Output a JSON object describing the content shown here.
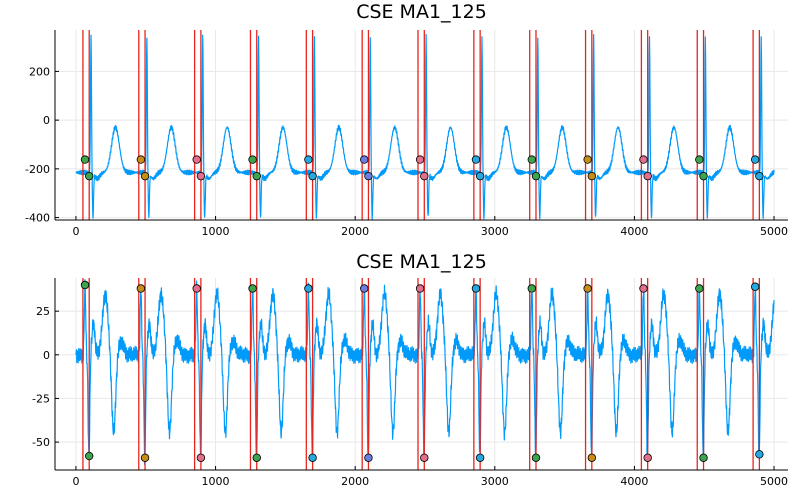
{
  "chart_data": [
    {
      "type": "line",
      "title": "CSE MA1_125",
      "xlabel": "",
      "ylabel": "",
      "xlim": [
        -150,
        5100
      ],
      "ylim": [
        -410,
        370
      ],
      "xticks": [
        0,
        1000,
        2000,
        3000,
        4000,
        5000
      ],
      "yticks": [
        -400,
        -200,
        0,
        200
      ],
      "grid": true,
      "legend": "none",
      "signal_color": "#009AFA",
      "vline_color": "#E8251D",
      "signal": {
        "n": 5000,
        "baseline": -215,
        "beats": [
          {
            "x": 108,
            "q": -395,
            "r": 350
          },
          {
            "x": 508,
            "q": -390,
            "r": 345
          },
          {
            "x": 908,
            "q": -395,
            "r": 345
          },
          {
            "x": 1308,
            "q": -395,
            "r": 345
          },
          {
            "x": 1708,
            "q": -395,
            "r": 345
          },
          {
            "x": 2108,
            "q": -395,
            "r": 345
          },
          {
            "x": 2508,
            "q": -395,
            "r": 345
          },
          {
            "x": 2908,
            "q": -395,
            "r": 345
          },
          {
            "x": 3308,
            "q": -395,
            "r": 345
          },
          {
            "x": 3708,
            "q": -395,
            "r": 345
          },
          {
            "x": 4108,
            "q": -395,
            "r": 345
          },
          {
            "x": 4508,
            "q": -395,
            "r": 345
          },
          {
            "x": 4908,
            "q": -395,
            "r": 345
          }
        ]
      },
      "vlines": [
        50,
        95,
        450,
        495,
        850,
        895,
        1250,
        1295,
        1650,
        1695,
        2050,
        2095,
        2450,
        2495,
        2850,
        2895,
        3250,
        3295,
        3650,
        3695,
        4050,
        4095,
        4450,
        4495,
        4850,
        4895
      ],
      "markers": [
        {
          "x": 65,
          "y": -162,
          "color": "#3EA44E"
        },
        {
          "x": 95,
          "y": -230,
          "color": "#3EA44E"
        },
        {
          "x": 465,
          "y": -162,
          "color": "#C68E19"
        },
        {
          "x": 495,
          "y": -230,
          "color": "#C68E19"
        },
        {
          "x": 865,
          "y": -162,
          "color": "#E26F8B"
        },
        {
          "x": 895,
          "y": -230,
          "color": "#E26F8B"
        },
        {
          "x": 1265,
          "y": -162,
          "color": "#3EA44E"
        },
        {
          "x": 1295,
          "y": -230,
          "color": "#3EA44E"
        },
        {
          "x": 1665,
          "y": -162,
          "color": "#27A9E0"
        },
        {
          "x": 1695,
          "y": -230,
          "color": "#27A9E0"
        },
        {
          "x": 2065,
          "y": -162,
          "color": "#6B7FE3"
        },
        {
          "x": 2095,
          "y": -230,
          "color": "#6B7FE3"
        },
        {
          "x": 2465,
          "y": -162,
          "color": "#E26F8B"
        },
        {
          "x": 2495,
          "y": -230,
          "color": "#E26F8B"
        },
        {
          "x": 2865,
          "y": -162,
          "color": "#27A9E0"
        },
        {
          "x": 2895,
          "y": -230,
          "color": "#27A9E0"
        },
        {
          "x": 3265,
          "y": -162,
          "color": "#3EA44E"
        },
        {
          "x": 3295,
          "y": -230,
          "color": "#3EA44E"
        },
        {
          "x": 3665,
          "y": -162,
          "color": "#C68E19"
        },
        {
          "x": 3695,
          "y": -230,
          "color": "#C68E19"
        },
        {
          "x": 4065,
          "y": -162,
          "color": "#E26F8B"
        },
        {
          "x": 4095,
          "y": -230,
          "color": "#E26F8B"
        },
        {
          "x": 4465,
          "y": -162,
          "color": "#3EA44E"
        },
        {
          "x": 4495,
          "y": -230,
          "color": "#3EA44E"
        },
        {
          "x": 4865,
          "y": -162,
          "color": "#27A9E0"
        },
        {
          "x": 4895,
          "y": -230,
          "color": "#27A9E0"
        }
      ]
    },
    {
      "type": "line",
      "title": "CSE MA1_125",
      "xlabel": "",
      "ylabel": "",
      "xlim": [
        -150,
        5100
      ],
      "ylim": [
        -66,
        44
      ],
      "xticks": [
        0,
        1000,
        2000,
        3000,
        4000,
        5000
      ],
      "yticks": [
        -50,
        -25,
        0,
        25
      ],
      "grid": true,
      "legend": "none",
      "signal_color": "#009AFA",
      "vline_color": "#E8251D",
      "signal": {
        "n": 5000,
        "baseline": 0,
        "beats": [
          {
            "x": 65,
            "q": -58,
            "r": 40
          },
          {
            "x": 465,
            "q": -59,
            "r": 38
          },
          {
            "x": 865,
            "q": -59,
            "r": 38
          },
          {
            "x": 1265,
            "q": -59,
            "r": 38
          },
          {
            "x": 1665,
            "q": -59,
            "r": 38
          },
          {
            "x": 2065,
            "q": -59,
            "r": 38
          },
          {
            "x": 2465,
            "q": -59,
            "r": 38
          },
          {
            "x": 2865,
            "q": -59,
            "r": 38
          },
          {
            "x": 3265,
            "q": -59,
            "r": 38
          },
          {
            "x": 3665,
            "q": -59,
            "r": 38
          },
          {
            "x": 4065,
            "q": -59,
            "r": 38
          },
          {
            "x": 4465,
            "q": -59,
            "r": 38
          },
          {
            "x": 4865,
            "q": -58,
            "r": 39
          }
        ]
      },
      "vlines": [
        50,
        95,
        450,
        495,
        850,
        895,
        1250,
        1295,
        1650,
        1695,
        2050,
        2095,
        2450,
        2495,
        2850,
        2895,
        3250,
        3295,
        3650,
        3695,
        4050,
        4095,
        4450,
        4495,
        4850,
        4895
      ],
      "markers": [
        {
          "x": 65,
          "y": 40,
          "color": "#3EA44E"
        },
        {
          "x": 95,
          "y": -58,
          "color": "#3EA44E"
        },
        {
          "x": 465,
          "y": 38,
          "color": "#C68E19"
        },
        {
          "x": 495,
          "y": -59,
          "color": "#C68E19"
        },
        {
          "x": 865,
          "y": 38,
          "color": "#E26F8B"
        },
        {
          "x": 895,
          "y": -59,
          "color": "#E26F8B"
        },
        {
          "x": 1265,
          "y": 38,
          "color": "#3EA44E"
        },
        {
          "x": 1295,
          "y": -59,
          "color": "#3EA44E"
        },
        {
          "x": 1665,
          "y": 38,
          "color": "#27A9E0"
        },
        {
          "x": 1695,
          "y": -59,
          "color": "#27A9E0"
        },
        {
          "x": 2065,
          "y": 38,
          "color": "#6B7FE3"
        },
        {
          "x": 2095,
          "y": -59,
          "color": "#6B7FE3"
        },
        {
          "x": 2465,
          "y": 38,
          "color": "#E26F8B"
        },
        {
          "x": 2495,
          "y": -59,
          "color": "#E26F8B"
        },
        {
          "x": 2865,
          "y": 38,
          "color": "#27A9E0"
        },
        {
          "x": 2895,
          "y": -59,
          "color": "#27A9E0"
        },
        {
          "x": 3265,
          "y": 38,
          "color": "#3EA44E"
        },
        {
          "x": 3295,
          "y": -59,
          "color": "#3EA44E"
        },
        {
          "x": 3665,
          "y": 38,
          "color": "#C68E19"
        },
        {
          "x": 3695,
          "y": -59,
          "color": "#C68E19"
        },
        {
          "x": 4065,
          "y": 38,
          "color": "#E26F8B"
        },
        {
          "x": 4095,
          "y": -59,
          "color": "#E26F8B"
        },
        {
          "x": 4465,
          "y": 38,
          "color": "#3EA44E"
        },
        {
          "x": 4495,
          "y": -59,
          "color": "#3EA44E"
        },
        {
          "x": 4865,
          "y": 39,
          "color": "#27A9E0"
        },
        {
          "x": 4895,
          "y": -57,
          "color": "#27A9E0"
        }
      ]
    }
  ]
}
